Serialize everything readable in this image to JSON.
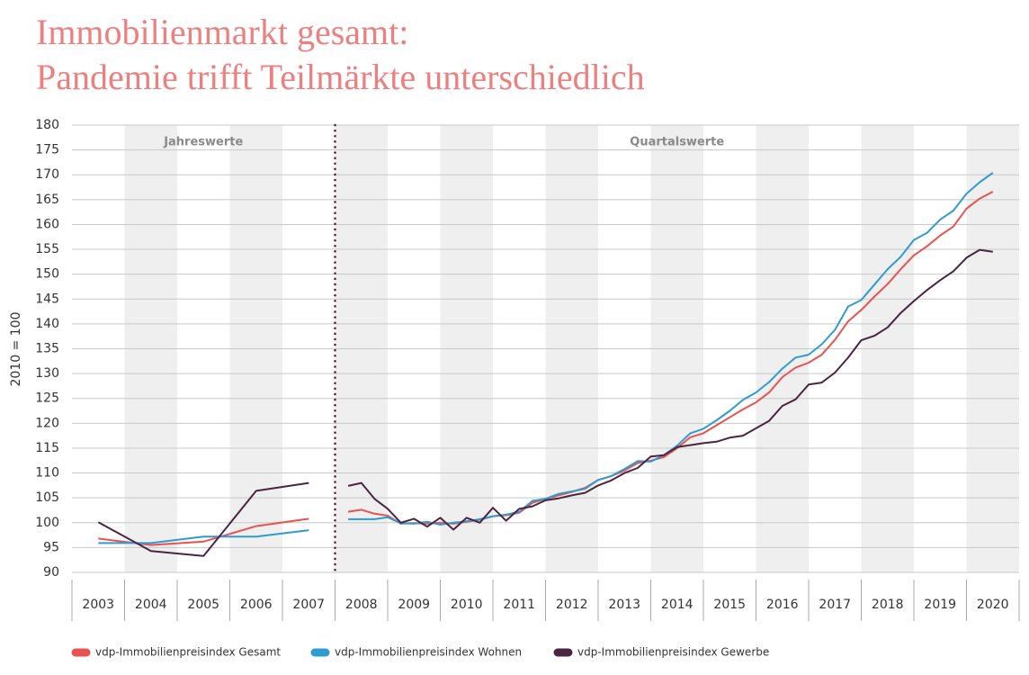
{
  "chart_data": {
    "type": "line",
    "title": [
      "Immobilienmarkt gesamt:",
      "Pandemie trifft Teilmärkte unterschiedlich"
    ],
    "y_label": "2010 = 100",
    "sections": [
      {
        "label": "Jahreswerte",
        "from": 2003,
        "to": 2008
      },
      {
        "label": "Quartalswerte",
        "from": 2008,
        "to": 2021
      }
    ],
    "x": [
      2003.5,
      2004.5,
      2005.5,
      2006.5,
      2007.5,
      null,
      2008.25,
      2008.5,
      2008.75,
      2009,
      2009.25,
      2009.5,
      2009.75,
      2010,
      2010.25,
      2010.5,
      2010.75,
      2011,
      2011.25,
      2011.5,
      2011.75,
      2012,
      2012.25,
      2012.5,
      2012.75,
      2013,
      2013.25,
      2013.5,
      2013.75,
      2014,
      2014.25,
      2014.5,
      2014.75,
      2015,
      2015.25,
      2015.5,
      2015.75,
      2016,
      2016.25,
      2016.5,
      2016.75,
      2017,
      2017.25,
      2017.5,
      2017.75,
      2018,
      2018.25,
      2018.5,
      2018.75,
      2019,
      2019.25,
      2019.5,
      2019.75,
      2020,
      2020.25,
      2020.5
    ],
    "series": [
      {
        "name": "vdp-Immobilienpreisindex Gesamt",
        "color": "#e8524f",
        "values": [
          96.8,
          95.5,
          96.2,
          99.3,
          100.8,
          null,
          102.2,
          102.6,
          101.8,
          101.4,
          99.8,
          99.9,
          99.8,
          100.0,
          99.8,
          100.2,
          100.6,
          101.3,
          101.5,
          102.0,
          104.0,
          104.8,
          105.5,
          106.2,
          107.0,
          108.6,
          109.4,
          110.5,
          112.0,
          112.5,
          113.2,
          115.0,
          117.2,
          118.0,
          119.6,
          121.2,
          122.8,
          124.2,
          126.2,
          129.3,
          131.2,
          132.2,
          133.8,
          136.8,
          140.5,
          142.8,
          145.5,
          148.0,
          151.0,
          153.8,
          155.6,
          157.8,
          159.6,
          163.2,
          165.2,
          166.6
        ]
      },
      {
        "name": "vdp-Immobilienpreisindex Wohnen",
        "color": "#2f9bd0",
        "values": [
          95.9,
          95.9,
          97.2,
          97.2,
          98.5,
          null,
          100.7,
          100.7,
          100.7,
          101.1,
          99.9,
          99.8,
          100.2,
          99.6,
          100.0,
          100.3,
          100.7,
          101.3,
          101.6,
          102.2,
          104.4,
          104.8,
          105.8,
          106.3,
          106.8,
          108.6,
          109.4,
          110.8,
          112.4,
          112.3,
          113.6,
          115.5,
          118.0,
          118.9,
          120.6,
          122.5,
          124.7,
          126.2,
          128.3,
          131.0,
          133.2,
          133.8,
          135.9,
          138.8,
          143.5,
          144.8,
          147.9,
          151.0,
          153.5,
          156.9,
          158.3,
          161.0,
          162.8,
          166.2,
          168.5,
          170.4
        ]
      },
      {
        "name": "vdp-Immobilienpreisindex Gewerbe",
        "color": "#4b2540",
        "values": [
          100.1,
          94.3,
          93.3,
          106.4,
          108.0,
          null,
          107.4,
          108.0,
          104.8,
          102.8,
          100.0,
          100.8,
          99.2,
          101.0,
          98.6,
          101.0,
          100.0,
          103.0,
          100.4,
          102.8,
          103.3,
          104.5,
          104.9,
          105.5,
          106.0,
          107.5,
          108.5,
          110.0,
          111.0,
          113.3,
          113.6,
          115.2,
          115.6,
          116.0,
          116.3,
          117.1,
          117.5,
          119.0,
          120.5,
          123.5,
          124.8,
          127.8,
          128.2,
          130.2,
          133.2,
          136.7,
          137.6,
          139.3,
          142.2,
          144.6,
          146.8,
          148.8,
          150.6,
          153.3,
          154.9,
          154.5
        ]
      }
    ],
    "xlim": [
      2003,
      2021
    ],
    "xticks": [
      {
        "value": 2003.5,
        "label": "2003"
      },
      {
        "value": 2004.5,
        "label": "2004"
      },
      {
        "value": 2005.5,
        "label": "2005"
      },
      {
        "value": 2006.5,
        "label": "2006"
      },
      {
        "value": 2007.5,
        "label": "2007"
      },
      {
        "value": 2008.5,
        "label": "2008"
      },
      {
        "value": 2009.5,
        "label": "2009"
      },
      {
        "value": 2010.5,
        "label": "2010"
      },
      {
        "value": 2011.5,
        "label": "2011"
      },
      {
        "value": 2012.5,
        "label": "2012"
      },
      {
        "value": 2013.5,
        "label": "2013"
      },
      {
        "value": 2014.5,
        "label": "2014"
      },
      {
        "value": 2015.5,
        "label": "2015"
      },
      {
        "value": 2016.5,
        "label": "2016"
      },
      {
        "value": 2017.5,
        "label": "2017"
      },
      {
        "value": 2018.5,
        "label": "2018"
      },
      {
        "value": 2019.5,
        "label": "2019"
      },
      {
        "value": 2020.5,
        "label": "2020"
      }
    ],
    "ylim": [
      90,
      180
    ],
    "yticks": [
      90,
      95,
      100,
      105,
      110,
      115,
      120,
      125,
      130,
      135,
      140,
      145,
      150,
      155,
      160,
      165,
      170,
      175,
      180
    ],
    "grid": true,
    "legend": "bottom"
  }
}
